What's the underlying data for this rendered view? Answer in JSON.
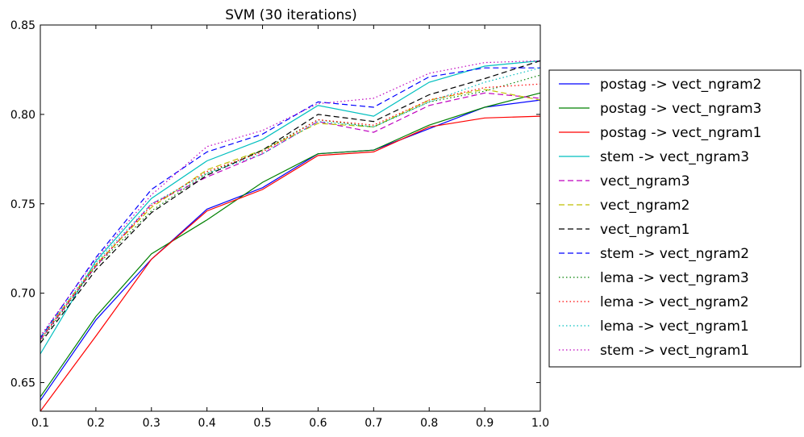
{
  "chart_data": {
    "type": "line",
    "title": "SVM (30 iterations)",
    "xlabel": "",
    "ylabel": "",
    "xlim": [
      0.1,
      1.0
    ],
    "ylim": [
      0.634,
      0.85
    ],
    "xticks": [
      "0.1",
      "0.2",
      "0.3",
      "0.4",
      "0.5",
      "0.6",
      "0.7",
      "0.8",
      "0.9",
      "1.0"
    ],
    "yticks": [
      "0.65",
      "0.70",
      "0.75",
      "0.80",
      "0.85"
    ],
    "grid": false,
    "legend_position": "right, outside",
    "x": [
      0.1,
      0.2,
      0.3,
      0.4,
      0.5,
      0.6,
      0.7,
      0.8,
      0.9,
      1.0
    ],
    "series": [
      {
        "name": "postag -> vect_ngram2",
        "color": "#0000ff",
        "dash": "solid",
        "values": [
          0.64,
          0.685,
          0.719,
          0.747,
          0.759,
          0.778,
          0.78,
          0.792,
          0.804,
          0.808
        ]
      },
      {
        "name": "postag -> vect_ngram3",
        "color": "#008000",
        "dash": "solid",
        "values": [
          0.642,
          0.687,
          0.722,
          0.741,
          0.762,
          0.778,
          0.78,
          0.794,
          0.804,
          0.812
        ]
      },
      {
        "name": "postag -> vect_ngram1",
        "color": "#ff0000",
        "dash": "solid",
        "values": [
          0.634,
          0.676,
          0.719,
          0.746,
          0.758,
          0.777,
          0.779,
          0.793,
          0.798,
          0.799
        ]
      },
      {
        "name": "stem -> vect_ngram3",
        "color": "#00bfbf",
        "dash": "solid",
        "values": [
          0.666,
          0.718,
          0.753,
          0.774,
          0.786,
          0.805,
          0.799,
          0.818,
          0.827,
          0.83
        ]
      },
      {
        "name": "vect_ngram3",
        "color": "#bf00bf",
        "dash": "dashed",
        "values": [
          0.674,
          0.715,
          0.75,
          0.765,
          0.778,
          0.796,
          0.79,
          0.805,
          0.812,
          0.809
        ]
      },
      {
        "name": "vect_ngram2",
        "color": "#bfbf00",
        "dash": "dashed",
        "values": [
          0.675,
          0.716,
          0.748,
          0.769,
          0.78,
          0.795,
          0.793,
          0.808,
          0.814,
          0.808
        ]
      },
      {
        "name": "vect_ngram1",
        "color": "#000000",
        "dash": "dashed",
        "values": [
          0.672,
          0.713,
          0.745,
          0.766,
          0.78,
          0.8,
          0.796,
          0.811,
          0.82,
          0.83
        ]
      },
      {
        "name": "stem -> vect_ngram2",
        "color": "#0000ff",
        "dash": "dashed",
        "values": [
          0.675,
          0.72,
          0.758,
          0.779,
          0.789,
          0.807,
          0.804,
          0.821,
          0.826,
          0.826
        ]
      },
      {
        "name": "lema -> vect_ngram3",
        "color": "#008000",
        "dash": "dotted",
        "values": [
          0.673,
          0.715,
          0.746,
          0.767,
          0.78,
          0.797,
          0.793,
          0.807,
          0.813,
          0.822
        ]
      },
      {
        "name": "lema -> vect_ngram2",
        "color": "#ff0000",
        "dash": "dotted",
        "values": [
          0.674,
          0.716,
          0.749,
          0.768,
          0.779,
          0.797,
          0.794,
          0.808,
          0.815,
          0.817
        ]
      },
      {
        "name": "lema -> vect_ngram1",
        "color": "#00bfbf",
        "dash": "dotted",
        "values": [
          0.675,
          0.717,
          0.75,
          0.767,
          0.778,
          0.796,
          0.793,
          0.807,
          0.818,
          0.826
        ]
      },
      {
        "name": "stem -> vect_ngram1",
        "color": "#bf00bf",
        "dash": "dotted",
        "values": [
          0.676,
          0.719,
          0.755,
          0.782,
          0.791,
          0.806,
          0.809,
          0.823,
          0.829,
          0.83
        ]
      }
    ]
  }
}
